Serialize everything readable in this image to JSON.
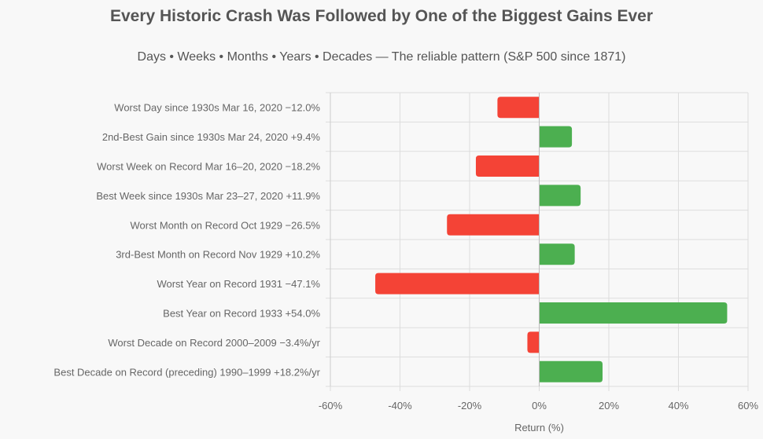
{
  "chart_data": {
    "type": "bar",
    "orientation": "horizontal",
    "title": "Every Historic Crash Was Followed by One of the Biggest Gains Ever",
    "subtitle": "Days • Weeks • Months • Years • Decades — The reliable pattern (S&P 500 since 1871)",
    "xlabel": "Return (%)",
    "ylabel": "",
    "xlim": [
      -60,
      60
    ],
    "xticks": [
      "-60%",
      "-40%",
      "-20%",
      "0%",
      "20%",
      "40%",
      "60%"
    ],
    "grid": true,
    "legend": "none",
    "colors": {
      "negative": "#f44336",
      "positive": "#4caf50"
    },
    "categories": [
      "Worst Day since 1930s Mar 16, 2020 −12.0%",
      "2nd-Best Gain since 1930s Mar 24, 2020 +9.4%",
      "Worst Week on Record Mar 16–20, 2020 −18.2%",
      "Best Week since 1930s Mar 23–27, 2020 +11.9%",
      "Worst Month on Record Oct 1929 −26.5%",
      "3rd-Best Month on Record Nov 1929 +10.2%",
      "Worst Year on Record 1931 −47.1%",
      "Best Year on Record 1933 +54.0%",
      "Worst Decade on Record 2000–2009 −3.4%/yr",
      "Best Decade on Record (preceding) 1990–1999 +18.2%/yr"
    ],
    "values": [
      -12.0,
      9.4,
      -18.2,
      11.9,
      -26.5,
      10.2,
      -47.1,
      54.0,
      -3.4,
      18.2
    ]
  }
}
